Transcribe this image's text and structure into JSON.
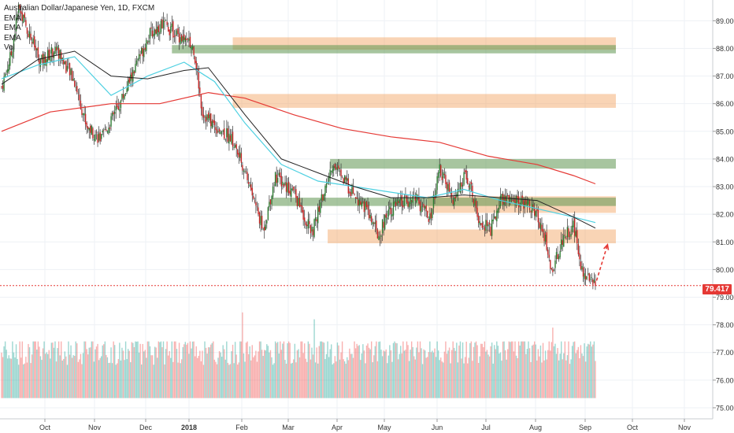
{
  "chart_data": {
    "type": "candlestick",
    "title": "Australian Dollar/Japanese Yen, 1D, FXCM",
    "legend": [
      "EMA",
      "EMA",
      "EMA",
      "Vol"
    ],
    "y_ticks": [
      "89.000",
      "88.000",
      "87.000",
      "86.000",
      "85.000",
      "84.000",
      "83.000",
      "82.000",
      "81.000",
      "80.000",
      "79.000",
      "78.000",
      "77.000",
      "76.000",
      "75.000"
    ],
    "ylim": [
      74.6,
      89.75
    ],
    "x_ticks": [
      "Oct",
      "Nov",
      "Dec",
      "2018",
      "Feb",
      "Mar",
      "Apr",
      "May",
      "Jun",
      "Jul",
      "Aug",
      "Sep",
      "Oct",
      "Nov"
    ],
    "last_price": "79.417",
    "anchors": [
      [
        0,
        86.6
      ],
      [
        8,
        87.8
      ],
      [
        14,
        89.5
      ],
      [
        22,
        88.6
      ],
      [
        32,
        87.5
      ],
      [
        45,
        88.0
      ],
      [
        60,
        86.8
      ],
      [
        70,
        85.2
      ],
      [
        82,
        84.7
      ],
      [
        95,
        85.8
      ],
      [
        110,
        87.3
      ],
      [
        120,
        88.4
      ],
      [
        132,
        88.9
      ],
      [
        145,
        88.5
      ],
      [
        158,
        88.0
      ],
      [
        165,
        85.7
      ],
      [
        175,
        85.2
      ],
      [
        188,
        84.8
      ],
      [
        200,
        83.6
      ],
      [
        215,
        81.4
      ],
      [
        225,
        83.4
      ],
      [
        240,
        82.8
      ],
      [
        255,
        81.3
      ],
      [
        265,
        82.8
      ],
      [
        272,
        83.8
      ],
      [
        285,
        83.0
      ],
      [
        298,
        82.3
      ],
      [
        310,
        81.2
      ],
      [
        318,
        82.2
      ],
      [
        330,
        82.4
      ],
      [
        340,
        82.6
      ],
      [
        352,
        81.8
      ],
      [
        360,
        83.6
      ],
      [
        372,
        82.4
      ],
      [
        382,
        83.5
      ],
      [
        392,
        81.9
      ],
      [
        402,
        81.4
      ],
      [
        410,
        82.6
      ],
      [
        422,
        82.5
      ],
      [
        435,
        82.3
      ],
      [
        445,
        81.5
      ],
      [
        452,
        79.9
      ],
      [
        462,
        81.2
      ],
      [
        470,
        81.6
      ],
      [
        477,
        80.0
      ],
      [
        482,
        79.8
      ],
      [
        488,
        79.4
      ]
    ],
    "ema_fast": [
      [
        0,
        86.9
      ],
      [
        30,
        87.4
      ],
      [
        60,
        87.7
      ],
      [
        90,
        86.3
      ],
      [
        120,
        87.0
      ],
      [
        150,
        87.5
      ],
      [
        175,
        86.8
      ],
      [
        200,
        85.3
      ],
      [
        230,
        83.8
      ],
      [
        260,
        83.2
      ],
      [
        290,
        83.0
      ],
      [
        320,
        82.8
      ],
      [
        350,
        82.6
      ],
      [
        380,
        82.9
      ],
      [
        410,
        82.5
      ],
      [
        440,
        82.2
      ],
      [
        470,
        81.9
      ],
      [
        488,
        81.7
      ]
    ],
    "ema_mid": [
      [
        0,
        86.7
      ],
      [
        30,
        87.6
      ],
      [
        60,
        87.9
      ],
      [
        90,
        87.0
      ],
      [
        120,
        86.9
      ],
      [
        150,
        87.2
      ],
      [
        170,
        87.3
      ],
      [
        200,
        85.6
      ],
      [
        230,
        84.0
      ],
      [
        260,
        83.5
      ],
      [
        290,
        83.0
      ],
      [
        320,
        82.6
      ],
      [
        350,
        82.6
      ],
      [
        380,
        82.7
      ],
      [
        410,
        82.6
      ],
      [
        440,
        82.5
      ],
      [
        470,
        81.9
      ],
      [
        488,
        81.5
      ]
    ],
    "ema_slow": [
      [
        0,
        85.0
      ],
      [
        40,
        85.7
      ],
      [
        90,
        86.0
      ],
      [
        130,
        86.0
      ],
      [
        170,
        86.4
      ],
      [
        200,
        86.2
      ],
      [
        240,
        85.6
      ],
      [
        280,
        85.1
      ],
      [
        320,
        84.8
      ],
      [
        360,
        84.6
      ],
      [
        400,
        84.1
      ],
      [
        440,
        83.8
      ],
      [
        470,
        83.4
      ],
      [
        488,
        83.1
      ]
    ],
    "zones": [
      {
        "y1": 87.95,
        "y2": 88.4,
        "x_from": 190,
        "color": "orange"
      },
      {
        "y1": 87.82,
        "y2": 88.12,
        "x_from": 140,
        "color": "green"
      },
      {
        "y1": 85.85,
        "y2": 86.35,
        "x_from": 190,
        "color": "orange"
      },
      {
        "y1": 83.65,
        "y2": 84.0,
        "x_from": 270,
        "color": "green"
      },
      {
        "y1": 82.05,
        "y2": 82.65,
        "x_from": 350,
        "color": "orange"
      },
      {
        "y1": 82.3,
        "y2": 82.6,
        "x_from": 222,
        "color": "green"
      },
      {
        "y1": 80.95,
        "y2": 81.45,
        "x_from": 268,
        "color": "orange"
      }
    ],
    "h_line": 79.42,
    "projection": {
      "from": [
        489,
        79.6
      ],
      "to": [
        498,
        80.9
      ]
    },
    "volume": {
      "base": 76.55,
      "min": 75.35,
      "max_price": 78.5,
      "spikes": [
        [
          198,
          78.45
        ],
        [
          257,
          78.2
        ],
        [
          453,
          77.9
        ]
      ]
    }
  }
}
